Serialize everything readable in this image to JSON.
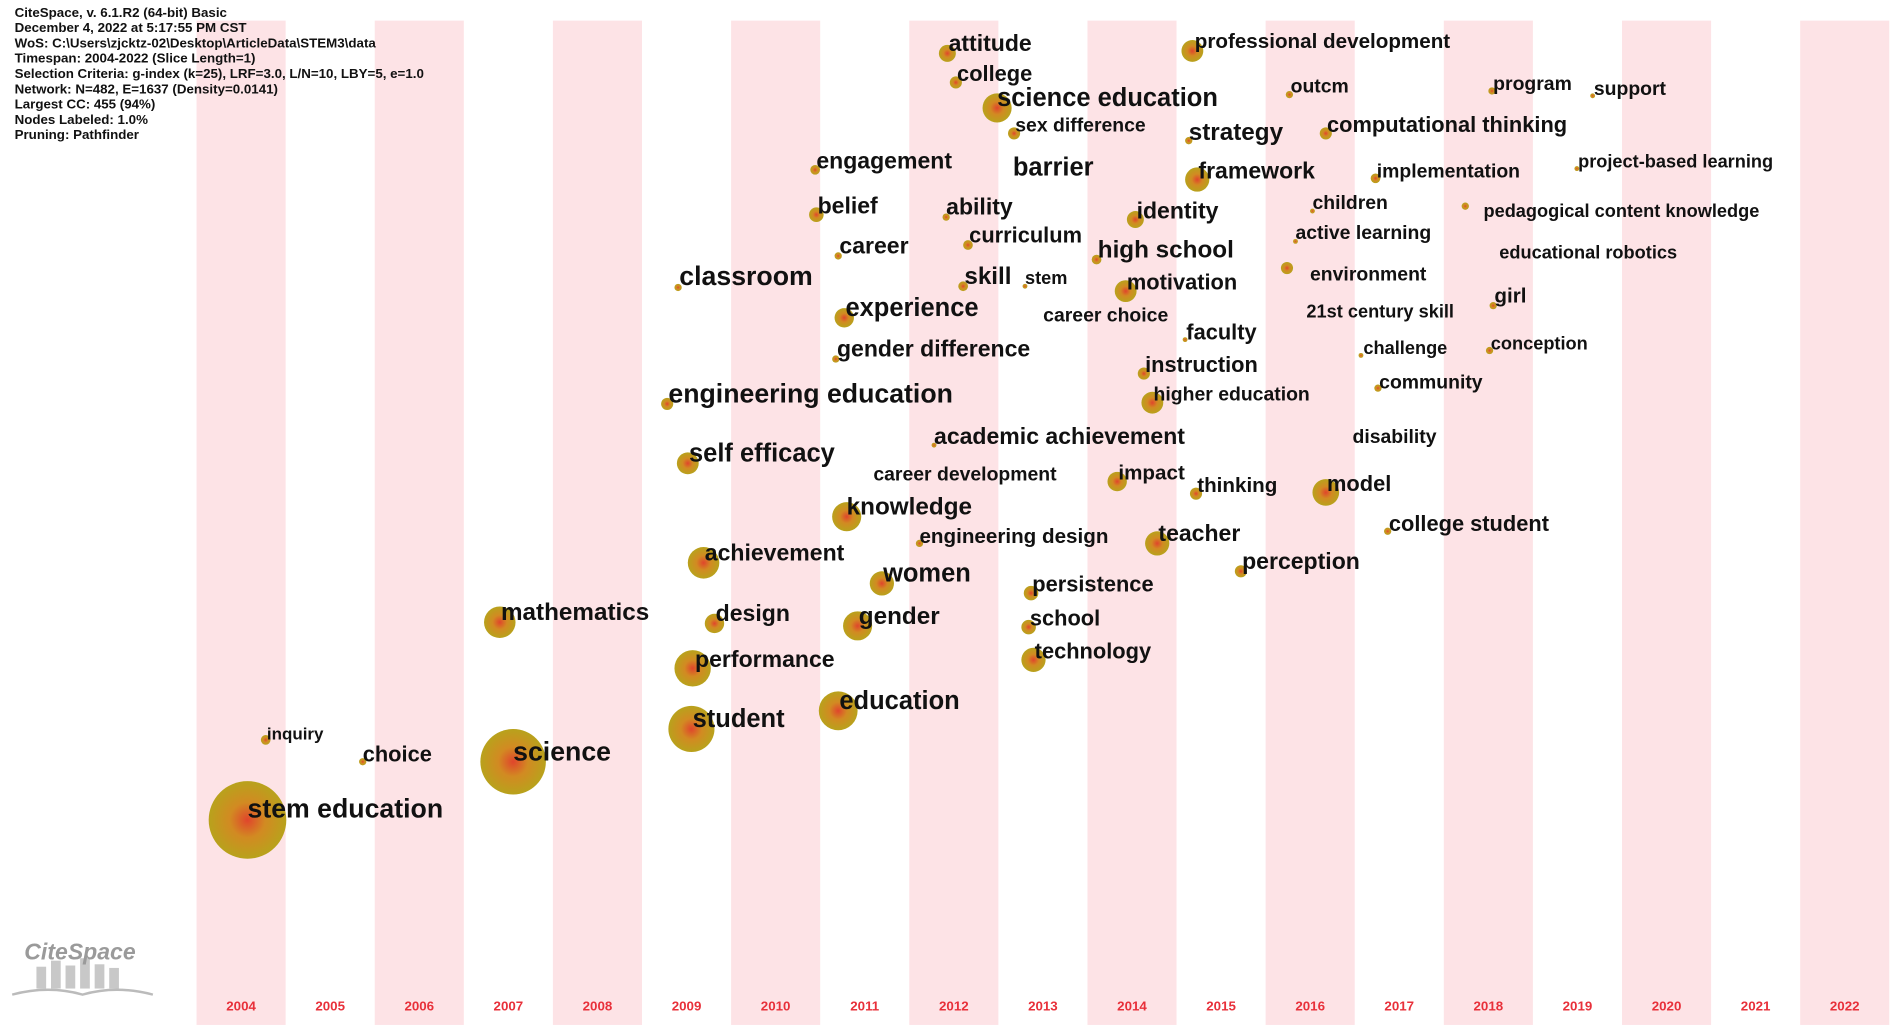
{
  "header": {
    "lines": [
      "CiteSpace, v. 6.1.R2 (64-bit) Basic",
      "December 4, 2022 at 5:17:55 PM CST",
      "WoS: C:\\Users\\zjcktz-02\\Desktop\\ArticleData\\STEM3\\data",
      "Timespan: 2004-2022 (Slice Length=1)",
      "Selection Criteria: g-index (k=25), LRF=3.0, L/N=10, LBY=5, e=1.0",
      "Network: N=482, E=1637 (Density=0.0141)",
      "Largest CC: 455 (94%)",
      "Nodes Labeled: 1.0%",
      "Pruning: Pathfinder"
    ]
  },
  "timeline": {
    "years": [
      "2004",
      "2005",
      "2006",
      "2007",
      "2008",
      "2009",
      "2010",
      "2011",
      "2012",
      "2013",
      "2014",
      "2015",
      "2016",
      "2017",
      "2018",
      "2019",
      "2020",
      "2021",
      "2022"
    ]
  },
  "logo": "CiteSpace",
  "nodes": [
    {
      "label": "stem education"
    },
    {
      "label": "inquiry"
    },
    {
      "label": "choice"
    },
    {
      "label": "science"
    },
    {
      "label": "mathematics"
    },
    {
      "label": "student"
    },
    {
      "label": "performance"
    },
    {
      "label": "design"
    },
    {
      "label": "achievement"
    },
    {
      "label": "self efficacy"
    },
    {
      "label": "engineering education"
    },
    {
      "label": "classroom"
    },
    {
      "label": "education"
    },
    {
      "label": "gender"
    },
    {
      "label": "women"
    },
    {
      "label": "knowledge"
    },
    {
      "label": "gender difference"
    },
    {
      "label": "experience"
    },
    {
      "label": "career"
    },
    {
      "label": "belief"
    },
    {
      "label": "engagement"
    },
    {
      "label": "engineering design"
    },
    {
      "label": "career development"
    },
    {
      "label": "academic achievement"
    },
    {
      "label": "skill"
    },
    {
      "label": "curriculum"
    },
    {
      "label": "ability"
    },
    {
      "label": "college"
    },
    {
      "label": "attitude"
    },
    {
      "label": "science education"
    },
    {
      "label": "sex difference"
    },
    {
      "label": "barrier"
    },
    {
      "label": "stem"
    },
    {
      "label": "career choice"
    },
    {
      "label": "persistence"
    },
    {
      "label": "school"
    },
    {
      "label": "technology"
    },
    {
      "label": "high school"
    },
    {
      "label": "identity"
    },
    {
      "label": "motivation"
    },
    {
      "label": "faculty"
    },
    {
      "label": "instruction"
    },
    {
      "label": "higher education"
    },
    {
      "label": "impact"
    },
    {
      "label": "teacher"
    },
    {
      "label": "thinking"
    },
    {
      "label": "professional development"
    },
    {
      "label": "strategy"
    },
    {
      "label": "framework"
    },
    {
      "label": "perception"
    },
    {
      "label": "outcm"
    },
    {
      "label": "computational thinking"
    },
    {
      "label": "children"
    },
    {
      "label": "active learning"
    },
    {
      "label": "environment"
    },
    {
      "label": "21st century skill"
    },
    {
      "label": "model"
    },
    {
      "label": "challenge"
    },
    {
      "label": "community"
    },
    {
      "label": "disability"
    },
    {
      "label": "college student"
    },
    {
      "label": "implementation"
    },
    {
      "label": "program"
    },
    {
      "label": "support"
    },
    {
      "label": "pedagogical content knowledge"
    },
    {
      "label": "educational robotics"
    },
    {
      "label": "girl"
    },
    {
      "label": "conception"
    },
    {
      "label": "project-based learning"
    }
  ]
}
